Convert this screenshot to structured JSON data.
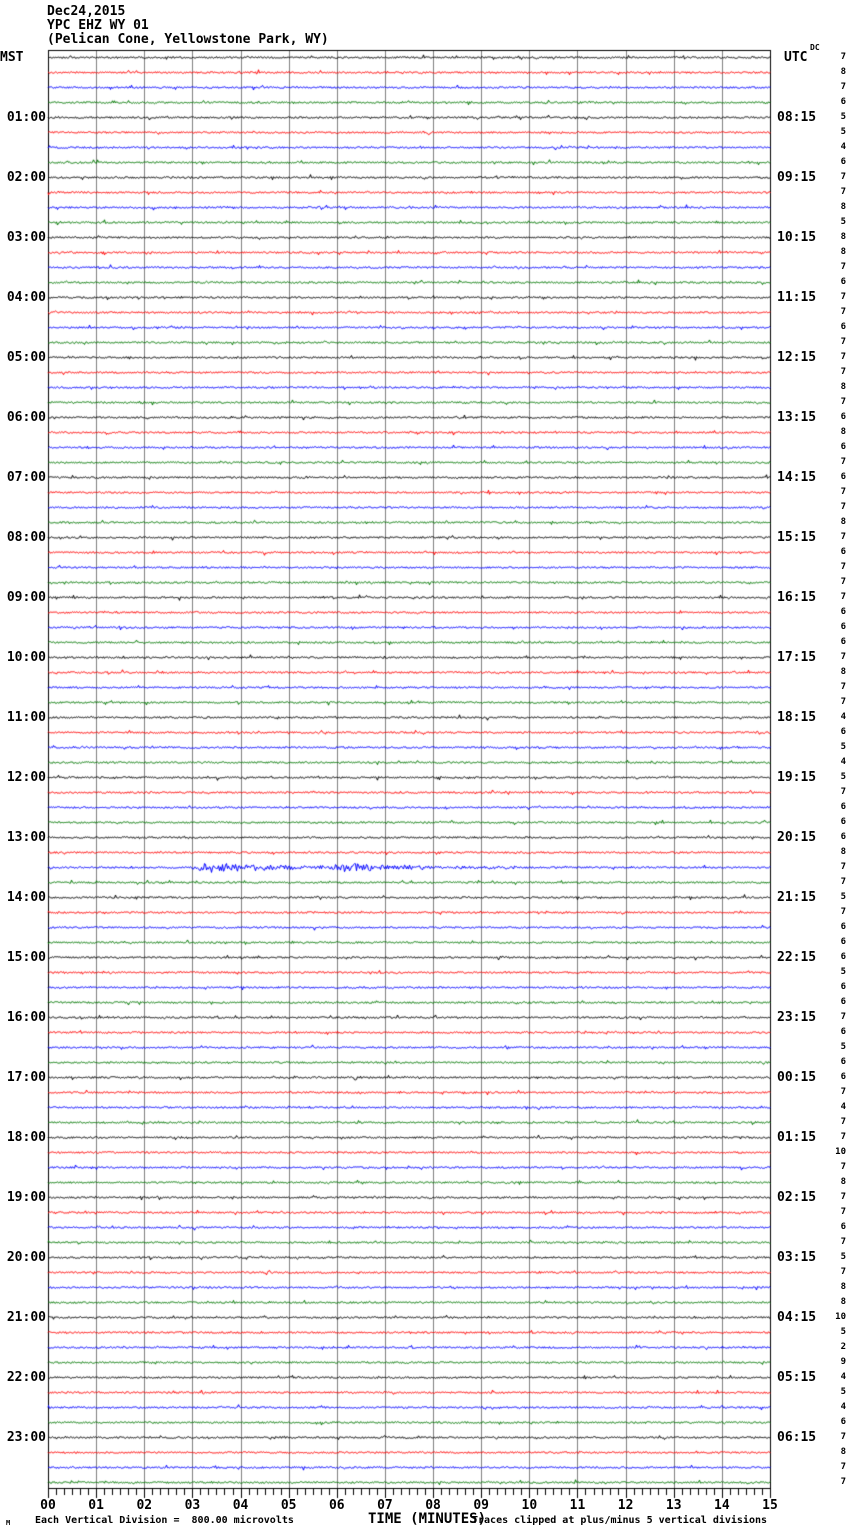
{
  "header": {
    "date": "Dec24,2015",
    "station": "YPC EHZ WY 01",
    "location": "(Pelican Cone, Yellowstone Park, WY)"
  },
  "axes": {
    "left_header": "MST",
    "right_header": "UTC",
    "dc_header": "DC",
    "x_title": "TIME (MINUTES)",
    "x_tick_labels": [
      "00",
      "01",
      "02",
      "03",
      "04",
      "05",
      "06",
      "07",
      "08",
      "09",
      "10",
      "11",
      "12",
      "13",
      "14",
      "15"
    ]
  },
  "footer": {
    "logo": "M",
    "scale_note": "Each Vertical Division =  800.00 microvolts",
    "clip_note": "Traces clipped at plus/minus 5 vertical divisions"
  },
  "colors": {
    "trace_cycle": [
      "#000000",
      "#ff0000",
      "#0000ff",
      "#007700"
    ],
    "grid": "#7f7f7f",
    "border": "#000000",
    "background": "#ffffff"
  },
  "chart_data": {
    "type": "line",
    "subtype": "helicorder-seismogram",
    "title": "YPC EHZ WY 01 (Pelican Cone, Yellowstone Park, WY) Dec24,2015",
    "xlabel": "TIME (MINUTES)",
    "x_range": [
      0,
      15
    ],
    "minutes_per_line": 15,
    "lines_per_hour": 4,
    "left_axis_timezone": "MST",
    "right_axis_timezone": "UTC",
    "grid": true,
    "rows": [
      {
        "dc": 7
      },
      {
        "dc": 8
      },
      {
        "dc": 7
      },
      {
        "dc": 6
      },
      {
        "mst": "01:00",
        "utc": "08:15",
        "dc": 5
      },
      {
        "dc": 5
      },
      {
        "dc": 4
      },
      {
        "dc": 6
      },
      {
        "mst": "02:00",
        "utc": "09:15",
        "dc": 7
      },
      {
        "dc": 7
      },
      {
        "dc": 8
      },
      {
        "dc": 5
      },
      {
        "mst": "03:00",
        "utc": "10:15",
        "dc": 8
      },
      {
        "dc": 8
      },
      {
        "dc": 7
      },
      {
        "dc": 6
      },
      {
        "mst": "04:00",
        "utc": "11:15",
        "dc": 7
      },
      {
        "dc": 7
      },
      {
        "dc": 6
      },
      {
        "dc": 7
      },
      {
        "mst": "05:00",
        "utc": "12:15",
        "dc": 7
      },
      {
        "dc": 7
      },
      {
        "dc": 8
      },
      {
        "dc": 7
      },
      {
        "mst": "06:00",
        "utc": "13:15",
        "dc": 6
      },
      {
        "dc": 8
      },
      {
        "dc": 6
      },
      {
        "dc": 7
      },
      {
        "mst": "07:00",
        "utc": "14:15",
        "dc": 6
      },
      {
        "dc": 7
      },
      {
        "dc": 7
      },
      {
        "dc": 8
      },
      {
        "mst": "08:00",
        "utc": "15:15",
        "dc": 7
      },
      {
        "dc": 6
      },
      {
        "dc": 7
      },
      {
        "dc": 7
      },
      {
        "mst": "09:00",
        "utc": "16:15",
        "dc": 7
      },
      {
        "dc": 6
      },
      {
        "dc": 6
      },
      {
        "dc": 6
      },
      {
        "mst": "10:00",
        "utc": "17:15",
        "dc": 7
      },
      {
        "dc": 8
      },
      {
        "dc": 7
      },
      {
        "dc": 7
      },
      {
        "mst": "11:00",
        "utc": "18:15",
        "dc": 4
      },
      {
        "dc": 6
      },
      {
        "dc": 5
      },
      {
        "dc": 4
      },
      {
        "mst": "12:00",
        "utc": "19:15",
        "dc": 5
      },
      {
        "dc": 7
      },
      {
        "dc": 6
      },
      {
        "dc": 6
      },
      {
        "mst": "13:00",
        "utc": "20:15",
        "dc": 6
      },
      {
        "dc": 8
      },
      {
        "dc": 7
      },
      {
        "dc": 7
      },
      {
        "mst": "14:00",
        "utc": "21:15",
        "dc": 5
      },
      {
        "dc": 7
      },
      {
        "dc": 6
      },
      {
        "dc": 6
      },
      {
        "mst": "15:00",
        "utc": "22:15",
        "dc": 6
      },
      {
        "dc": 5
      },
      {
        "dc": 6
      },
      {
        "dc": 6
      },
      {
        "mst": "16:00",
        "utc": "23:15",
        "dc": 7
      },
      {
        "dc": 6
      },
      {
        "dc": 5
      },
      {
        "dc": 6
      },
      {
        "mst": "17:00",
        "utc": "00:15",
        "dc": 6
      },
      {
        "dc": 7
      },
      {
        "dc": 4
      },
      {
        "dc": 7
      },
      {
        "mst": "18:00",
        "utc": "01:15",
        "dc": 7
      },
      {
        "dc": 10
      },
      {
        "dc": 7
      },
      {
        "dc": 8
      },
      {
        "mst": "19:00",
        "utc": "02:15",
        "dc": 7
      },
      {
        "dc": 7
      },
      {
        "dc": 6
      },
      {
        "dc": 7
      },
      {
        "mst": "20:00",
        "utc": "03:15",
        "dc": 5
      },
      {
        "dc": 7
      },
      {
        "dc": 8
      },
      {
        "dc": 8
      },
      {
        "mst": "21:00",
        "utc": "04:15",
        "dc": 10
      },
      {
        "dc": 5
      },
      {
        "dc": 2
      },
      {
        "dc": 9
      },
      {
        "mst": "22:00",
        "utc": "05:15",
        "dc": 4
      },
      {
        "dc": 5
      },
      {
        "dc": 4
      },
      {
        "dc": 6
      },
      {
        "mst": "23:00",
        "utc": "06:15",
        "dc": 7
      },
      {
        "dc": 8
      },
      {
        "dc": 7
      },
      {
        "dc": 7
      }
    ],
    "annotations": [
      {
        "row_index": 54,
        "trace_color": "blue",
        "mst_window": "13:30-13:45",
        "utc_window": "20:30-20:45",
        "note": "elevated-amplitude noise burst between ~minute 3 and ~minute 9 of the line"
      }
    ]
  }
}
